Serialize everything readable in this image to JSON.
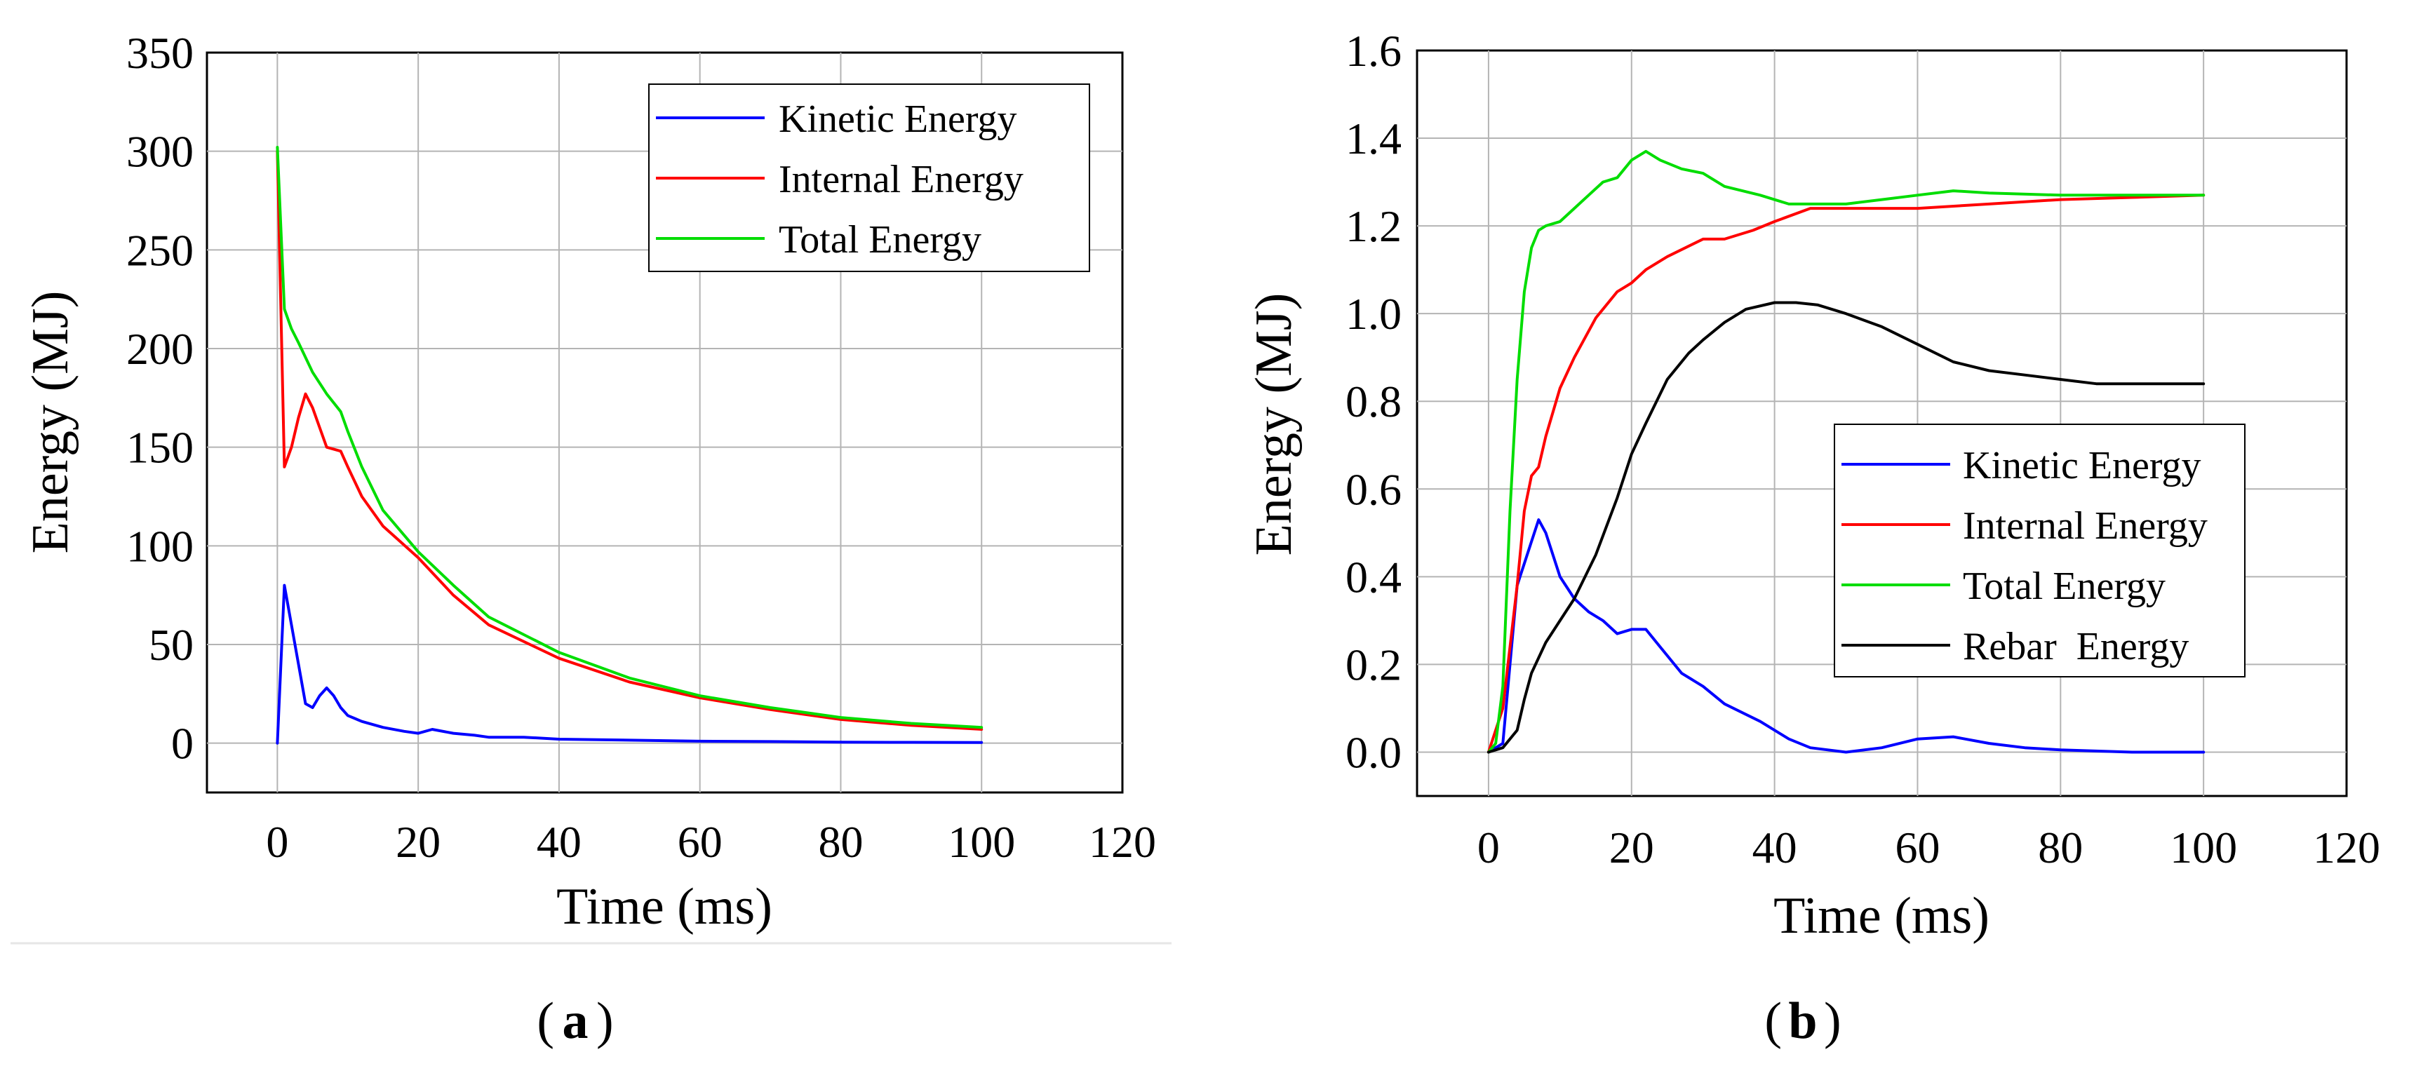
{
  "chart_data": [
    {
      "type": "line",
      "panel_label": "a",
      "xlabel": "Time (ms)",
      "ylabel": "Energy (MJ)",
      "xlim": [
        -10,
        120
      ],
      "ylim": [
        -25,
        350
      ],
      "xticks": [
        0,
        20,
        40,
        60,
        80,
        100,
        120
      ],
      "yticks": [
        0,
        50,
        100,
        150,
        200,
        250,
        300,
        350
      ],
      "grid": true,
      "legend_position": "top-right",
      "series": [
        {
          "name": "Kinetic Energy",
          "color": "#0000ff",
          "x": [
            0,
            1,
            3,
            4,
            5,
            6,
            7,
            8,
            9,
            10,
            12,
            15,
            18,
            20,
            22,
            25,
            28,
            30,
            35,
            40,
            50,
            60,
            70,
            80,
            90,
            100
          ],
          "y": [
            0,
            80,
            40,
            20,
            18,
            24,
            28,
            24,
            18,
            14,
            11,
            8,
            6,
            5,
            7,
            5,
            4,
            3,
            3,
            2,
            1.5,
            1,
            0.8,
            0.5,
            0.4,
            0.3
          ]
        },
        {
          "name": "Internal Energy",
          "color": "#ff0000",
          "x": [
            0,
            1,
            2,
            3,
            4,
            5,
            6,
            7,
            9,
            10,
            12,
            15,
            20,
            25,
            30,
            40,
            50,
            60,
            70,
            80,
            90,
            100
          ],
          "y": [
            300,
            140,
            150,
            165,
            177,
            170,
            160,
            150,
            148,
            140,
            125,
            110,
            94,
            75,
            60,
            43,
            31,
            23,
            17,
            12,
            9,
            7
          ]
        },
        {
          "name": "Total Energy",
          "color": "#00dd00",
          "x": [
            0,
            1,
            2,
            3,
            5,
            7,
            9,
            10,
            12,
            15,
            20,
            25,
            30,
            40,
            50,
            60,
            70,
            80,
            90,
            100
          ],
          "y": [
            302,
            220,
            210,
            203,
            188,
            177,
            168,
            158,
            140,
            118,
            97,
            80,
            64,
            46,
            33,
            24,
            18,
            13,
            10,
            8
          ]
        }
      ]
    },
    {
      "type": "line",
      "panel_label": "b",
      "xlabel": "Time (ms)",
      "ylabel": "Energy (MJ)",
      "xlim": [
        -10,
        120
      ],
      "ylim": [
        -0.1,
        1.6
      ],
      "xticks": [
        0,
        20,
        40,
        60,
        80,
        100,
        120
      ],
      "yticks": [
        "0.0",
        "0.2",
        "0.4",
        "0.6",
        "0.8",
        "1.0",
        "1.2",
        "1.4",
        "1.6"
      ],
      "grid": true,
      "legend_position": "center-right",
      "series": [
        {
          "name": "Kinetic Energy",
          "color": "#0000ff",
          "x": [
            0,
            2,
            4,
            6,
            7,
            8,
            10,
            12,
            14,
            16,
            18,
            20,
            22,
            24,
            27,
            30,
            33,
            38,
            42,
            45,
            50,
            55,
            60,
            65,
            70,
            75,
            80,
            90,
            100
          ],
          "y": [
            0,
            0.02,
            0.38,
            0.48,
            0.53,
            0.5,
            0.4,
            0.35,
            0.32,
            0.3,
            0.27,
            0.28,
            0.28,
            0.24,
            0.18,
            0.15,
            0.11,
            0.07,
            0.03,
            0.01,
            0.0,
            0.01,
            0.03,
            0.035,
            0.02,
            0.01,
            0.005,
            0,
            0
          ]
        },
        {
          "name": "Internal Energy",
          "color": "#ff0000",
          "x": [
            0,
            2,
            4,
            5,
            6,
            7,
            8,
            10,
            12,
            15,
            18,
            20,
            22,
            25,
            30,
            33,
            37,
            40,
            45,
            50,
            60,
            70,
            80,
            90,
            100
          ],
          "y": [
            0,
            0.1,
            0.38,
            0.55,
            0.63,
            0.65,
            0.72,
            0.83,
            0.9,
            0.99,
            1.05,
            1.07,
            1.1,
            1.13,
            1.17,
            1.17,
            1.19,
            1.21,
            1.24,
            1.24,
            1.24,
            1.25,
            1.26,
            1.265,
            1.27
          ]
        },
        {
          "name": "Total Energy",
          "color": "#00dd00",
          "x": [
            0,
            1,
            2,
            3,
            4,
            5,
            6,
            7,
            8,
            10,
            12,
            14,
            16,
            18,
            20,
            22,
            24,
            27,
            30,
            33,
            38,
            42,
            45,
            50,
            55,
            60,
            65,
            70,
            80,
            90,
            100
          ],
          "y": [
            0,
            0.02,
            0.15,
            0.55,
            0.85,
            1.05,
            1.15,
            1.19,
            1.2,
            1.21,
            1.24,
            1.27,
            1.3,
            1.31,
            1.35,
            1.37,
            1.35,
            1.33,
            1.32,
            1.29,
            1.27,
            1.25,
            1.25,
            1.25,
            1.26,
            1.27,
            1.28,
            1.275,
            1.27,
            1.27,
            1.27
          ]
        },
        {
          "name": "Rebar  Energy",
          "color": "#000000",
          "x": [
            0,
            2,
            4,
            5,
            6,
            8,
            10,
            12,
            15,
            18,
            20,
            22,
            25,
            28,
            30,
            33,
            36,
            40,
            43,
            46,
            50,
            55,
            60,
            65,
            70,
            75,
            80,
            85,
            90,
            100
          ],
          "y": [
            0,
            0.01,
            0.05,
            0.12,
            0.18,
            0.25,
            0.3,
            0.35,
            0.45,
            0.58,
            0.68,
            0.75,
            0.85,
            0.91,
            0.94,
            0.98,
            1.01,
            1.025,
            1.025,
            1.02,
            1.0,
            0.97,
            0.93,
            0.89,
            0.87,
            0.86,
            0.85,
            0.84,
            0.84,
            0.84
          ]
        }
      ]
    }
  ]
}
